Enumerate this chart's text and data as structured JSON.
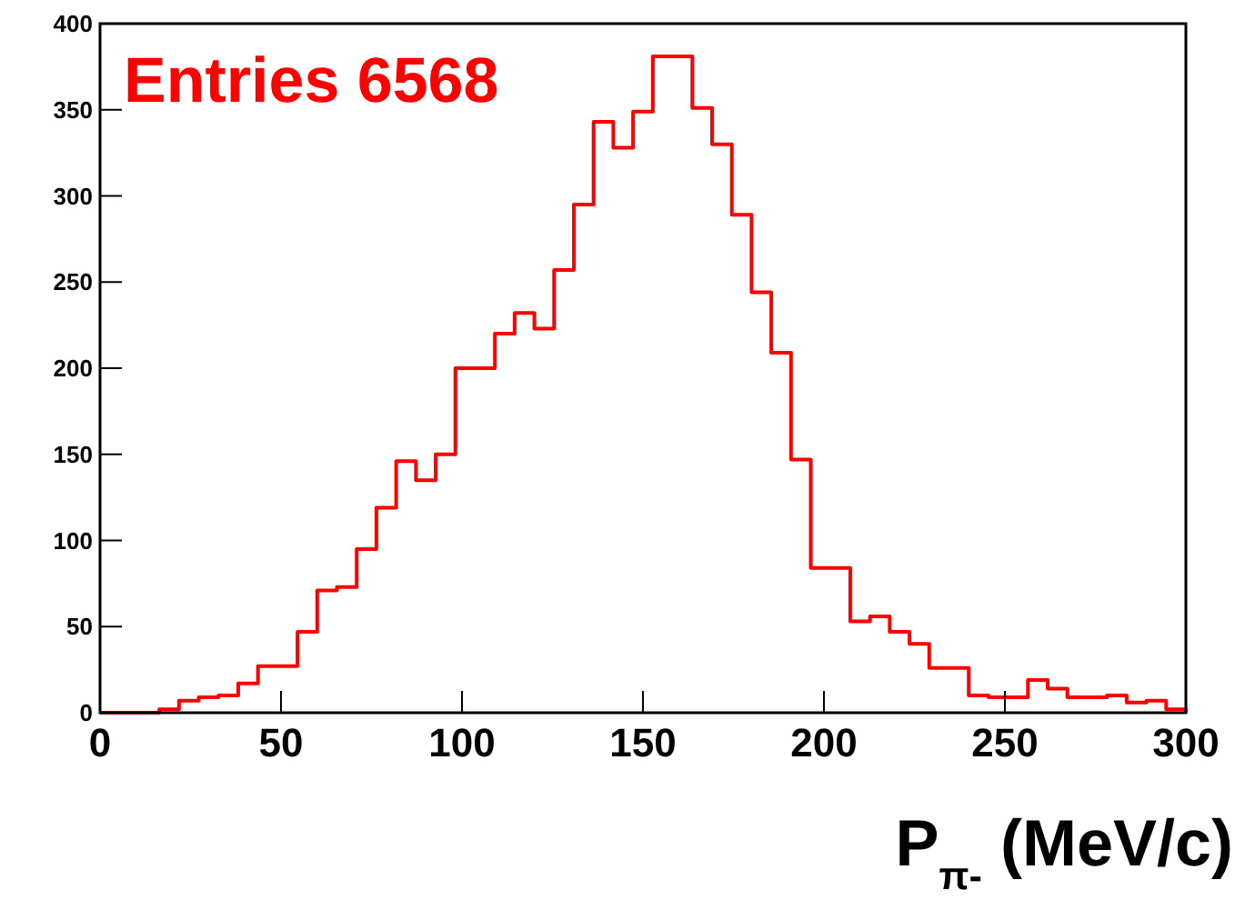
{
  "chart_data": {
    "type": "histogram",
    "xlabel": "P$_{π-}$ (MeV/c)",
    "annotations": [
      "Entries 6568"
    ],
    "bins": [
      0,
      5.45,
      10.91,
      16.36,
      21.82,
      27.27,
      32.73,
      38.18,
      43.64,
      49.09,
      54.55,
      60,
      65.45,
      70.91,
      76.36,
      81.82,
      87.27,
      92.73,
      98.18,
      103.64,
      109.09,
      114.55,
      120,
      125.45,
      130.91,
      136.36,
      141.82,
      147.27,
      152.73,
      158.18,
      163.64,
      169.09,
      174.55,
      180,
      185.45,
      190.91,
      196.36,
      201.82,
      207.27,
      212.73,
      218.18,
      223.64,
      229.09,
      234.55,
      240,
      245.45,
      250.91,
      256.36,
      261.82,
      267.27,
      272.73,
      278.18,
      283.64,
      289.09,
      294.55,
      300
    ],
    "values": [
      0,
      0,
      0,
      2,
      7,
      9,
      10,
      17,
      27,
      27,
      47,
      71,
      73,
      95,
      119,
      146,
      135,
      150,
      200,
      200,
      220,
      232,
      223,
      257,
      295,
      343,
      328,
      349,
      381,
      381,
      351,
      330,
      289,
      244,
      209,
      147,
      84,
      84,
      53,
      56,
      47,
      40,
      26,
      26,
      10,
      9,
      9,
      19,
      14,
      9,
      9,
      10,
      6,
      7,
      2
    ],
    "color": "#ff0000",
    "xlim": [
      0,
      300
    ],
    "ylim": [
      0,
      400
    ],
    "xticks": [
      0,
      50,
      100,
      150,
      200,
      250,
      300
    ],
    "yticks": [
      0,
      50,
      100,
      150,
      200,
      250,
      300,
      350,
      400
    ],
    "grid": false
  }
}
